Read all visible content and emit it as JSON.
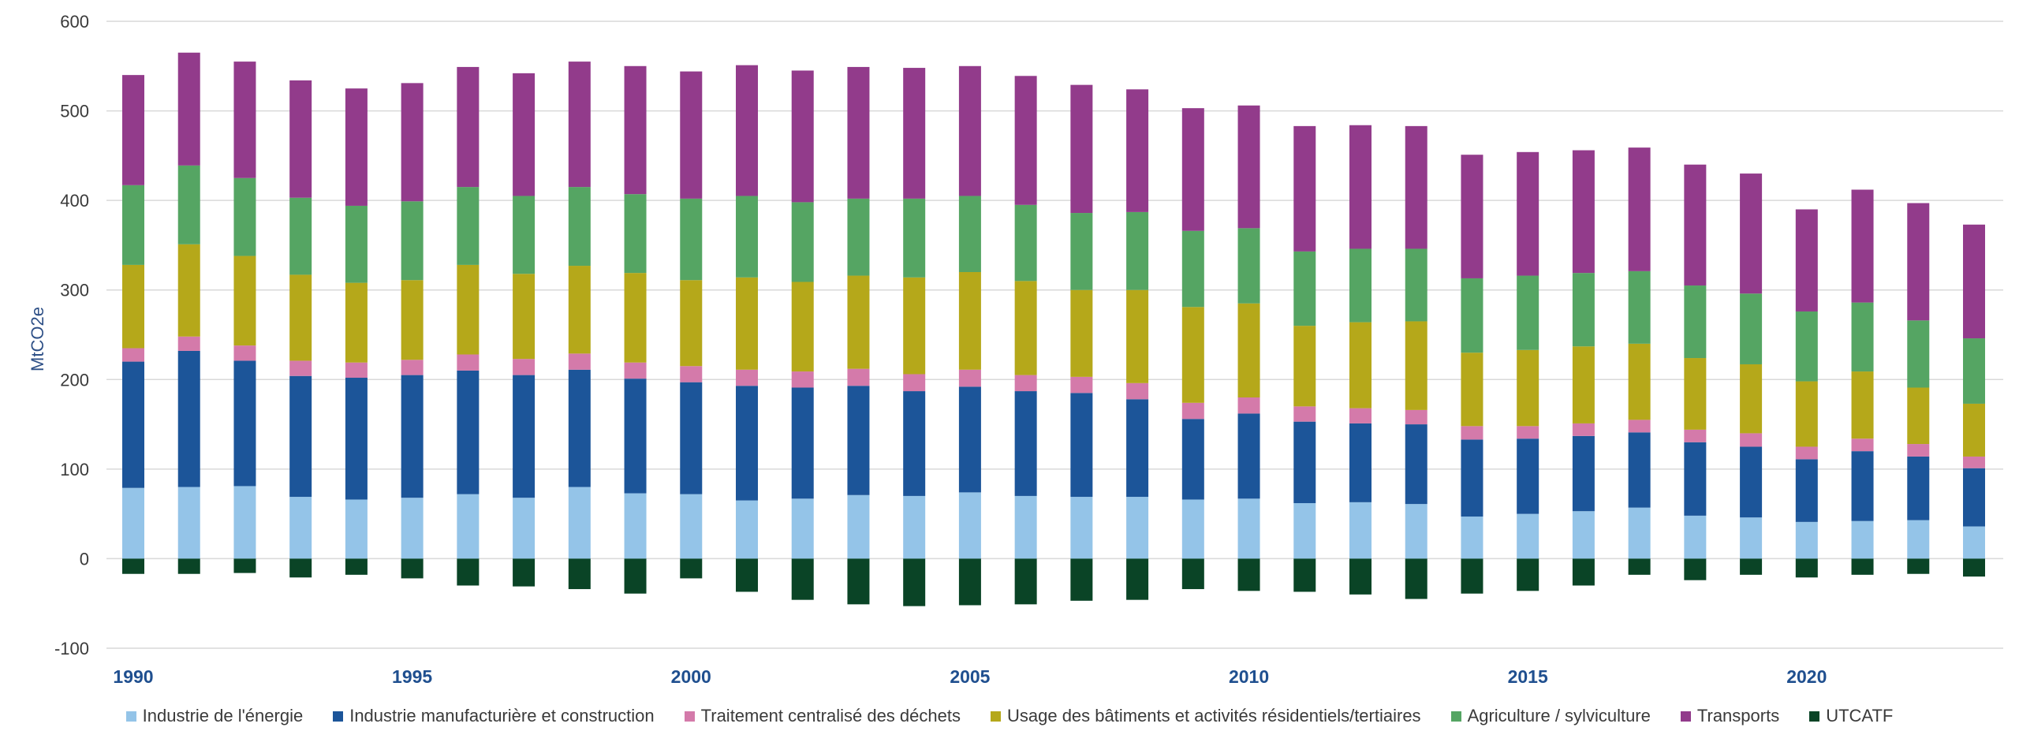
{
  "chart_data": {
    "type": "bar",
    "stacked": true,
    "ylabel": "MtCO2e",
    "ylim": [
      -100,
      600
    ],
    "yticks": [
      "600",
      "500",
      "400",
      "300",
      "200",
      "100",
      "0",
      "-100"
    ],
    "ytick_values": [
      600,
      500,
      400,
      300,
      200,
      100,
      0,
      -100
    ],
    "grid": true,
    "legend_position": "bottom",
    "x": [
      1990,
      1991,
      1992,
      1993,
      1994,
      1995,
      1996,
      1997,
      1998,
      1999,
      2000,
      2001,
      2002,
      2003,
      2004,
      2005,
      2006,
      2007,
      2008,
      2009,
      2010,
      2011,
      2012,
      2013,
      2014,
      2015,
      2016,
      2017,
      2018,
      2019,
      2020,
      2021,
      2022,
      2023
    ],
    "xtick_labels": [
      "1990",
      "1995",
      "2000",
      "2005",
      "2010",
      "2015",
      "2020"
    ],
    "xtick_values": [
      1990,
      1995,
      2000,
      2005,
      2010,
      2015,
      2020
    ],
    "series": [
      {
        "name": "Industrie de l'énergie",
        "color": "#94c4e8",
        "values": [
          79,
          80,
          81,
          69,
          66,
          68,
          72,
          68,
          80,
          73,
          72,
          65,
          67,
          71,
          70,
          74,
          70,
          69,
          69,
          66,
          67,
          62,
          63,
          61,
          47,
          50,
          53,
          57,
          48,
          46,
          41,
          42,
          43,
          36
        ]
      },
      {
        "name": "Industrie manufacturière et construction",
        "color": "#1c5599",
        "values": [
          141,
          152,
          140,
          135,
          136,
          137,
          138,
          137,
          131,
          128,
          125,
          128,
          124,
          122,
          117,
          118,
          117,
          116,
          109,
          90,
          95,
          91,
          88,
          89,
          86,
          84,
          84,
          84,
          82,
          79,
          70,
          78,
          71,
          65
        ]
      },
      {
        "name": "Traitement centralisé des déchets",
        "color": "#d47aaa",
        "values": [
          15,
          16,
          17,
          17,
          17,
          17,
          18,
          18,
          18,
          18,
          18,
          18,
          18,
          19,
          19,
          19,
          18,
          18,
          18,
          18,
          18,
          17,
          17,
          16,
          15,
          14,
          14,
          14,
          14,
          15,
          14,
          14,
          14,
          13
        ]
      },
      {
        "name": "Usage des bâtiments et activités résidentiels/tertiaires",
        "color": "#b5a81a",
        "values": [
          93,
          103,
          100,
          96,
          89,
          89,
          100,
          95,
          98,
          100,
          96,
          103,
          100,
          104,
          108,
          109,
          105,
          97,
          104,
          107,
          105,
          90,
          96,
          99,
          82,
          85,
          86,
          85,
          80,
          77,
          73,
          75,
          63,
          59
        ]
      },
      {
        "name": "Agriculture / sylviculture",
        "color": "#55a563",
        "values": [
          89,
          88,
          87,
          86,
          86,
          88,
          87,
          87,
          88,
          88,
          91,
          91,
          89,
          86,
          88,
          85,
          85,
          86,
          87,
          85,
          84,
          83,
          82,
          81,
          83,
          83,
          82,
          81,
          81,
          79,
          78,
          77,
          75,
          73
        ]
      },
      {
        "name": "Transports",
        "color": "#923b8b",
        "values": [
          123,
          126,
          130,
          131,
          131,
          132,
          134,
          137,
          140,
          143,
          142,
          146,
          147,
          147,
          146,
          145,
          144,
          143,
          137,
          137,
          137,
          140,
          138,
          137,
          138,
          138,
          137,
          138,
          135,
          134,
          114,
          126,
          131,
          127
        ]
      },
      {
        "name": "UTCATF",
        "color": "#0a4426",
        "values": [
          -17,
          -17,
          -16,
          -21,
          -18,
          -22,
          -30,
          -31,
          -34,
          -39,
          -22,
          -37,
          -46,
          -51,
          -53,
          -52,
          -51,
          -47,
          -46,
          -34,
          -36,
          -37,
          -40,
          -45,
          -39,
          -36,
          -30,
          -18,
          -24,
          -18,
          -21,
          -18,
          -17,
          -20
        ]
      }
    ]
  }
}
